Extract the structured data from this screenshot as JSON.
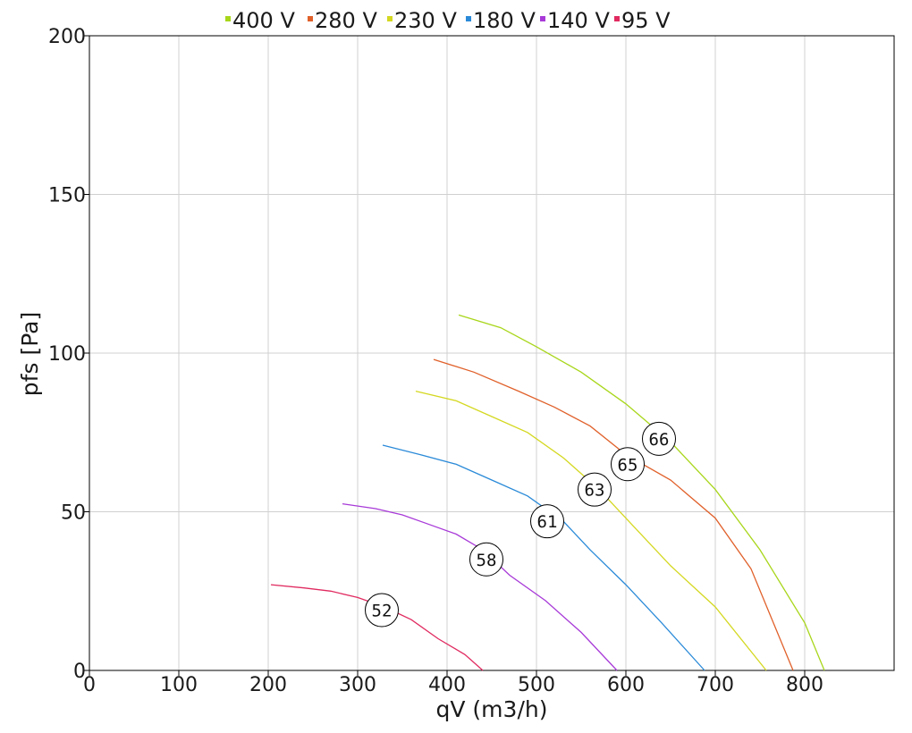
{
  "chart_data": {
    "type": "line",
    "xlabel": "qV (m3/h)",
    "ylabel": "pfs [Pa]",
    "xlim": [
      0,
      900
    ],
    "ylim": [
      0,
      200
    ],
    "x_ticks": [
      0,
      100,
      200,
      300,
      400,
      500,
      600,
      700,
      800
    ],
    "y_ticks": [
      0,
      50,
      100,
      150,
      200
    ],
    "grid": true,
    "legend_position": "top",
    "series": [
      {
        "name": "400 V",
        "color": "#a8d61a",
        "points": [
          [
            413,
            112
          ],
          [
            460,
            108
          ],
          [
            500,
            102
          ],
          [
            550,
            94
          ],
          [
            600,
            84
          ],
          [
            650,
            72
          ],
          [
            700,
            57
          ],
          [
            750,
            38
          ],
          [
            800,
            15
          ],
          [
            822,
            0
          ]
        ],
        "label": "66",
        "label_at": [
          637,
          73
        ]
      },
      {
        "name": "280 V",
        "color": "#e0602a",
        "points": [
          [
            385,
            98
          ],
          [
            430,
            94
          ],
          [
            480,
            88
          ],
          [
            520,
            83
          ],
          [
            560,
            77
          ],
          [
            600,
            68
          ],
          [
            650,
            60
          ],
          [
            700,
            48
          ],
          [
            740,
            32
          ],
          [
            787,
            0
          ]
        ],
        "label": "65",
        "label_at": [
          602,
          65
        ]
      },
      {
        "name": "230 V",
        "color": "#d4d820",
        "points": [
          [
            365,
            88
          ],
          [
            410,
            85
          ],
          [
            450,
            80
          ],
          [
            490,
            75
          ],
          [
            530,
            67
          ],
          [
            570,
            57
          ],
          [
            610,
            45
          ],
          [
            650,
            33
          ],
          [
            700,
            20
          ],
          [
            757,
            0
          ]
        ],
        "label": "63",
        "label_at": [
          565,
          57
        ]
      },
      {
        "name": "180 V",
        "color": "#2a8ad8",
        "points": [
          [
            328,
            71
          ],
          [
            370,
            68
          ],
          [
            410,
            65
          ],
          [
            450,
            60
          ],
          [
            490,
            55
          ],
          [
            530,
            47
          ],
          [
            560,
            38
          ],
          [
            600,
            27
          ],
          [
            640,
            15
          ],
          [
            688,
            0
          ]
        ],
        "label": "61",
        "label_at": [
          512,
          47
        ]
      },
      {
        "name": "140 V",
        "color": "#a83ad8",
        "points": [
          [
            283,
            52.5
          ],
          [
            320,
            51
          ],
          [
            350,
            49
          ],
          [
            380,
            46
          ],
          [
            410,
            43
          ],
          [
            440,
            38
          ],
          [
            470,
            30
          ],
          [
            510,
            22
          ],
          [
            550,
            12
          ],
          [
            590,
            0
          ]
        ],
        "label": "58",
        "label_at": [
          444,
          35
        ]
      },
      {
        "name": "95 V",
        "color": "#e02a60",
        "points": [
          [
            203,
            27
          ],
          [
            240,
            26
          ],
          [
            270,
            25
          ],
          [
            300,
            23
          ],
          [
            330,
            20
          ],
          [
            360,
            16
          ],
          [
            390,
            10
          ],
          [
            420,
            5
          ],
          [
            440,
            0
          ]
        ],
        "label": "52",
        "label_at": [
          327,
          19
        ]
      }
    ]
  }
}
